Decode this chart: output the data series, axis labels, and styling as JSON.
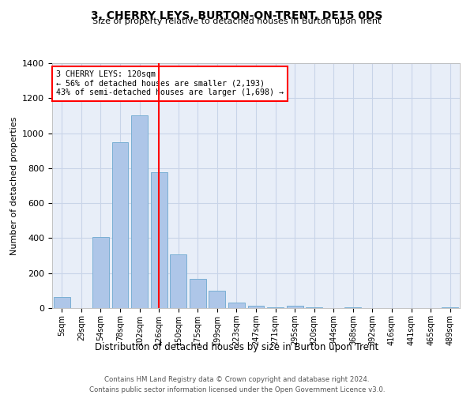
{
  "title": "3, CHERRY LEYS, BURTON-ON-TRENT, DE15 0DS",
  "subtitle": "Size of property relative to detached houses in Burton upon Trent",
  "xlabel": "Distribution of detached houses by size in Burton upon Trent",
  "ylabel": "Number of detached properties",
  "footer1": "Contains HM Land Registry data © Crown copyright and database right 2024.",
  "footer2": "Contains public sector information licensed under the Open Government Licence v3.0.",
  "categories": [
    "5sqm",
    "29sqm",
    "54sqm",
    "78sqm",
    "102sqm",
    "126sqm",
    "150sqm",
    "175sqm",
    "199sqm",
    "223sqm",
    "247sqm",
    "271sqm",
    "295sqm",
    "320sqm",
    "344sqm",
    "368sqm",
    "392sqm",
    "416sqm",
    "441sqm",
    "465sqm",
    "489sqm"
  ],
  "values": [
    65,
    0,
    405,
    950,
    1100,
    775,
    305,
    165,
    100,
    30,
    15,
    5,
    15,
    5,
    0,
    5,
    0,
    0,
    0,
    0,
    5
  ],
  "bar_color": "#aec6e8",
  "bar_edge_color": "#7aafd4",
  "grid_color": "#c8d4e8",
  "background_color": "#e8eef8",
  "vline_x_index": 5,
  "vline_color": "red",
  "annotation_text": "3 CHERRY LEYS: 120sqm\n← 56% of detached houses are smaller (2,193)\n43% of semi-detached houses are larger (1,698) →",
  "annotation_box_color": "white",
  "annotation_box_edge_color": "red",
  "ylim": [
    0,
    1400
  ],
  "yticks": [
    0,
    200,
    400,
    600,
    800,
    1000,
    1200,
    1400
  ]
}
